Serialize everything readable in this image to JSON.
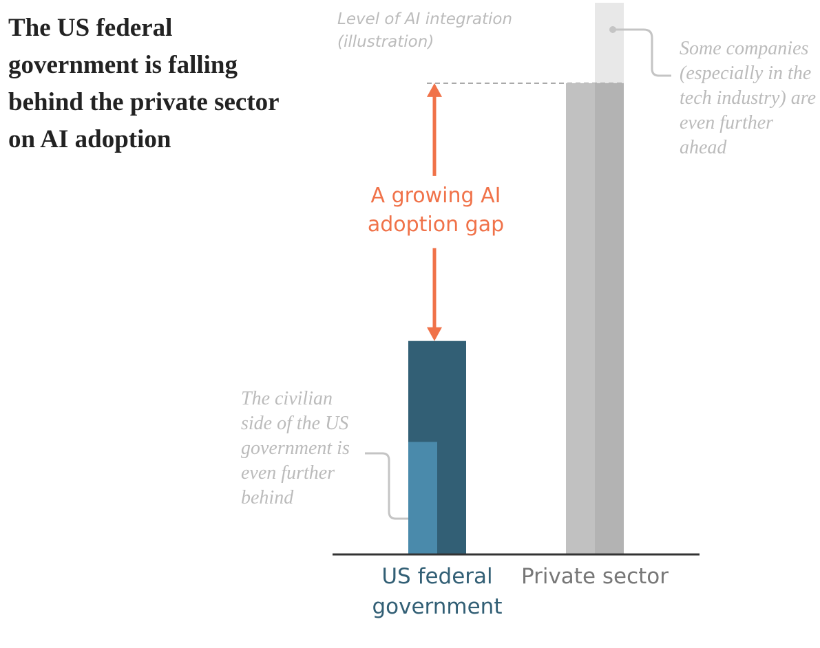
{
  "chart_data": {
    "type": "bar",
    "title": "The US federal government is falling behind the private sector on AI adoption",
    "y_label": "Level of AI integration (illustration)",
    "gap_label": "A growing AI adoption gap",
    "annotations": [
      "The civilian side of the US government is even further behind",
      "Some companies (especially in the tech industry) are even further ahead"
    ],
    "categories": [
      "US federal government",
      "Private sector"
    ],
    "category_colors": [
      "#325f75",
      "#777777"
    ],
    "values": [
      38.5,
      85
    ],
    "colors": [
      "#325f75",
      "#c1c1c1"
    ],
    "sub_values": [
      20.3,
      99.5
    ],
    "sub_colors": [
      "#4a8aab",
      "#e8e8e8"
    ],
    "gap_color": "#f07249",
    "ylim": [
      0,
      100
    ]
  }
}
